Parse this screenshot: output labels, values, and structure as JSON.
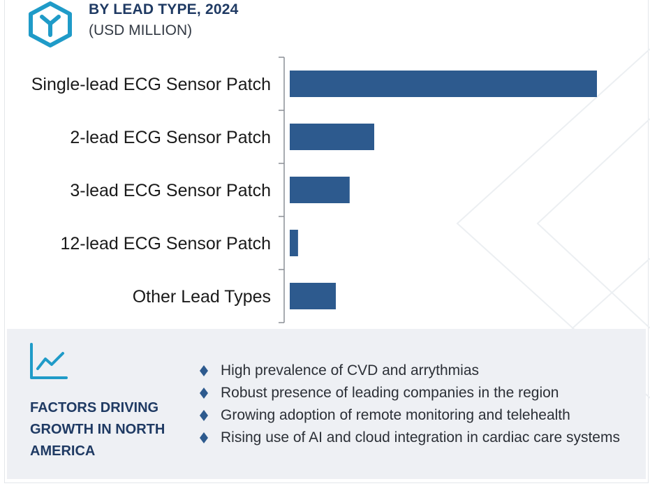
{
  "header": {
    "title": "BY LEAD TYPE, 2024",
    "subtitle": "(USD MILLION)",
    "logo_icon": "y-hexagon-logo-icon",
    "accent_color": "#1f9bc8",
    "title_color": "#1f3a63"
  },
  "chart_data": {
    "type": "bar",
    "orientation": "horizontal",
    "categories": [
      "Single-lead ECG Sensor Patch",
      "2-lead ECG Sensor Patch",
      "3-lead ECG Sensor Patch",
      "12-lead ECG Sensor Patch",
      "Other Lead Types"
    ],
    "values": [
      100,
      27.5,
      19.5,
      2.7,
      15
    ],
    "xlim": [
      0,
      100
    ],
    "title": "BY LEAD TYPE, 2024",
    "xlabel": "",
    "ylabel": "",
    "grid": false,
    "bar_color": "#2d5a8e"
  },
  "factors": {
    "icon": "trend-line-chart-icon",
    "title": "FACTORS DRIVING GROWTH IN NORTH AMERICA",
    "items": [
      "High prevalence of CVD and arrythmias",
      "Robust presence of leading companies in the region",
      "Growing adoption of remote monitoring and telehealth",
      "Rising use of AI and cloud integration in cardiac care systems"
    ],
    "bullet_icon": "diamond-bullet-icon",
    "bullet_color": "#2d5a8e"
  }
}
